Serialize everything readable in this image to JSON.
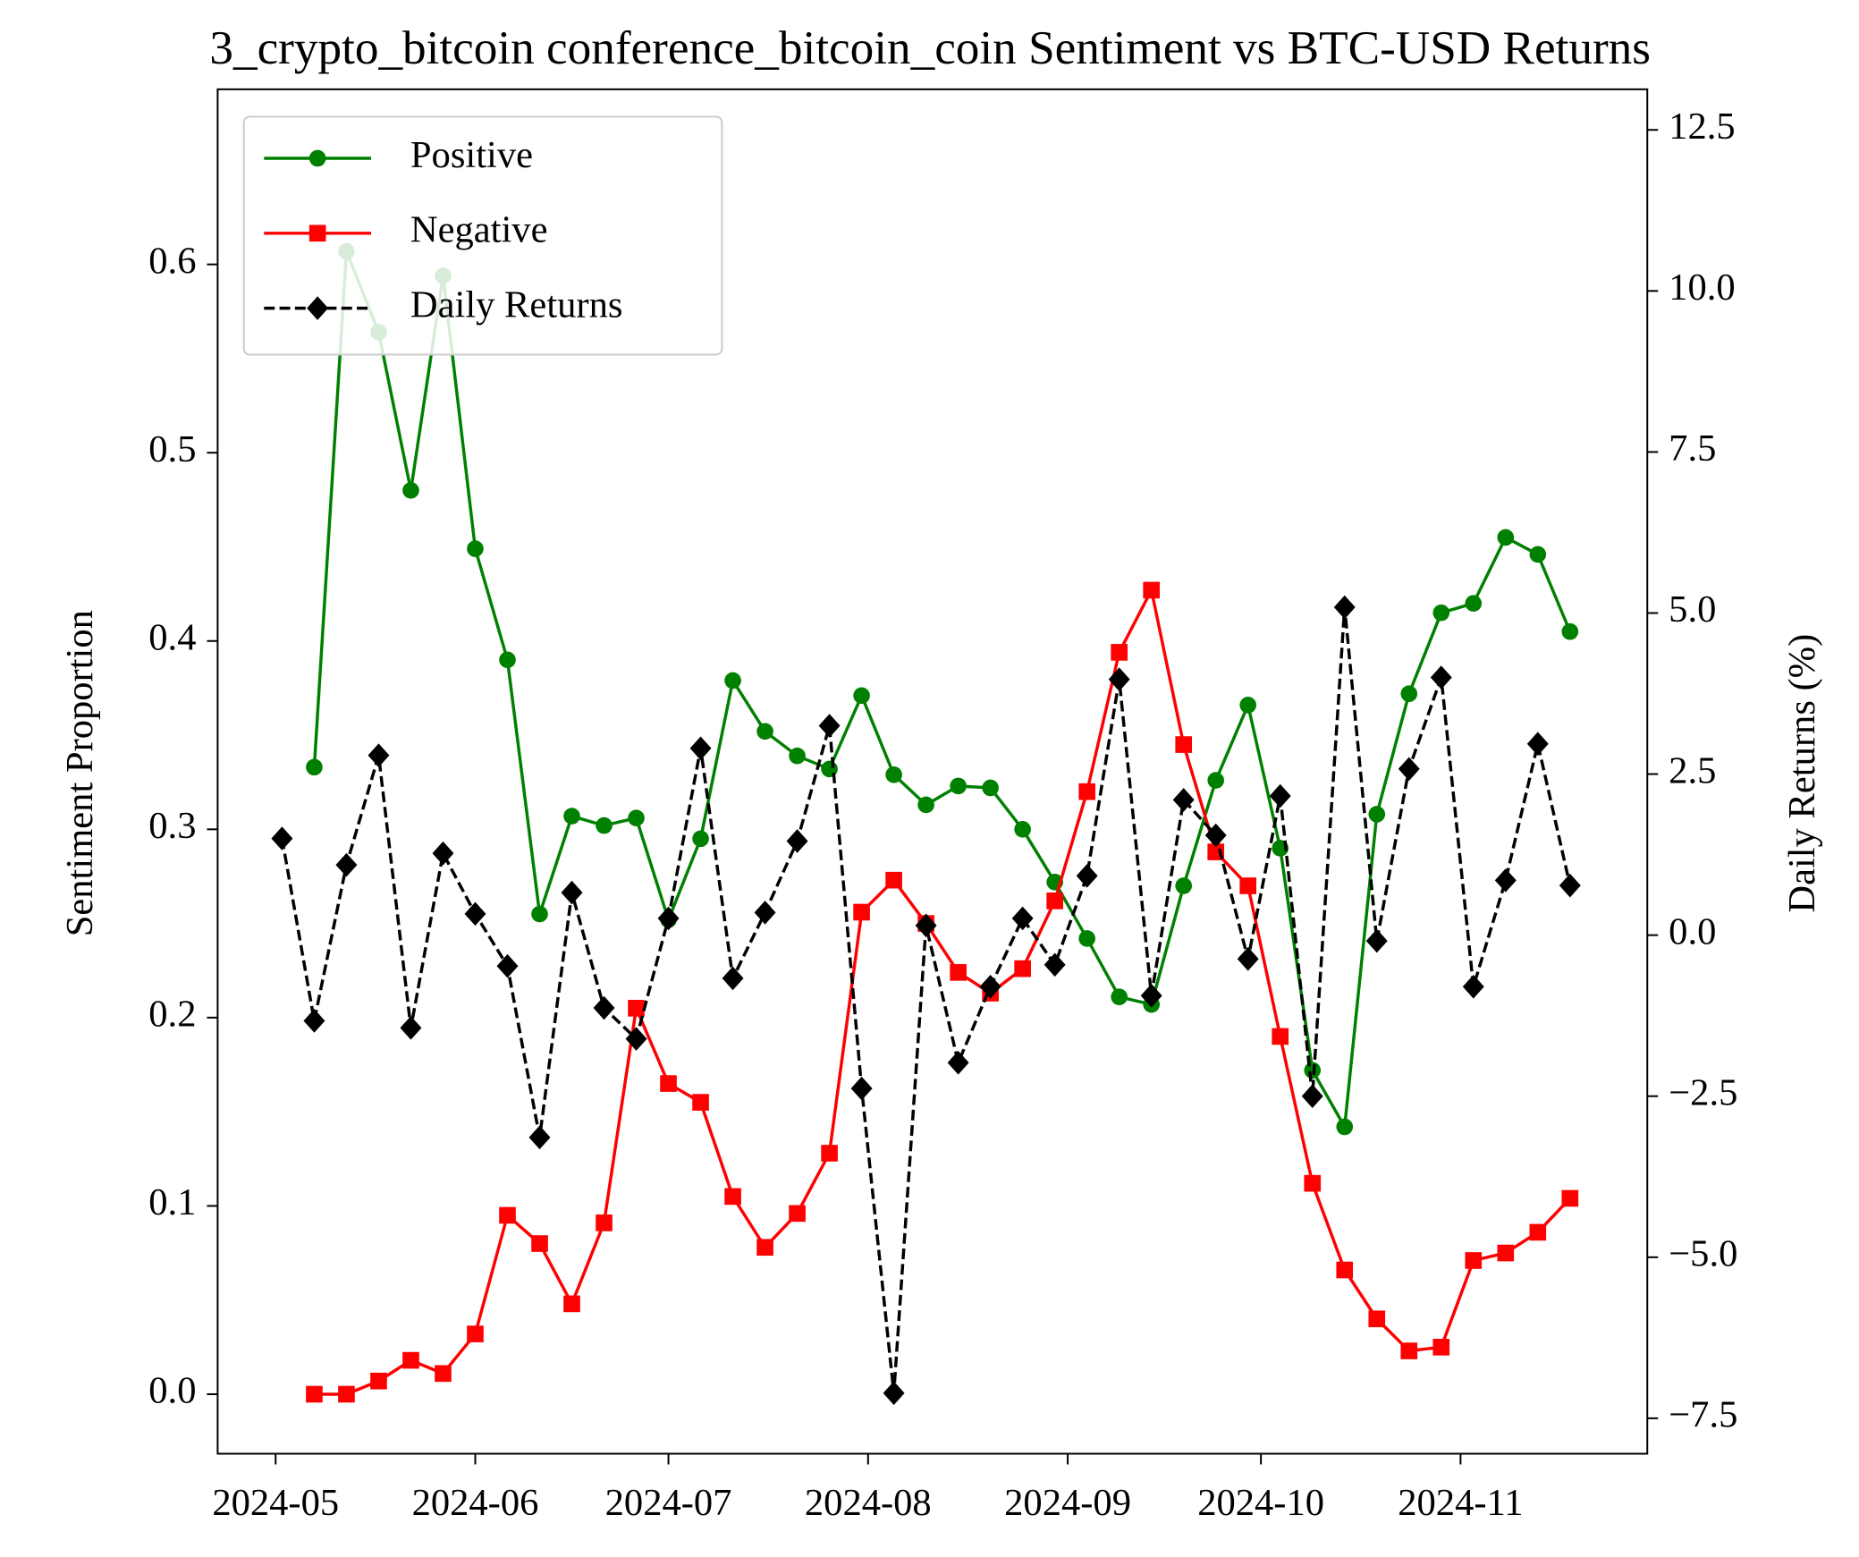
{
  "chart_data": {
    "type": "line",
    "title": "3_crypto_bitcoin conference_bitcoin_coin Sentiment vs BTC-USD Returns",
    "ylabel": "Sentiment Proportion",
    "y2label": "Daily Returns (%)",
    "legend": "upper left",
    "xlim": [
      "2024-04-22",
      "2024-11-30"
    ],
    "xticks": [
      {
        "value": "2024-05-01",
        "label": "2024-05"
      },
      {
        "value": "2024-06-01",
        "label": "2024-06"
      },
      {
        "value": "2024-07-01",
        "label": "2024-07"
      },
      {
        "value": "2024-08-01",
        "label": "2024-08"
      },
      {
        "value": "2024-09-01",
        "label": "2024-09"
      },
      {
        "value": "2024-10-01",
        "label": "2024-10"
      },
      {
        "value": "2024-11-01",
        "label": "2024-11"
      }
    ],
    "ylim": [
      -0.0316,
      0.693
    ],
    "yticks": [
      {
        "value": 0,
        "label": "0.0"
      },
      0.1,
      0.2,
      0.3,
      0.4,
      0.5,
      0.6
    ],
    "y2lim": [
      -8.05,
      13.13
    ],
    "y2ticks": [
      {
        "value": -7.5,
        "label": "−7.5"
      },
      {
        "value": -5,
        "label": "−5.0"
      },
      {
        "value": -2.5,
        "label": "−2.5"
      },
      {
        "value": 0,
        "label": "0.0"
      },
      2.5,
      {
        "value": 5,
        "label": "5.0"
      },
      7.5,
      {
        "value": 10,
        "label": "10.0"
      },
      12.5
    ],
    "x": [
      "2024-05-07",
      "2024-05-12",
      "2024-05-17",
      "2024-05-22",
      "2024-05-27",
      "2024-06-01",
      "2024-06-06",
      "2024-06-11",
      "2024-06-16",
      "2024-06-21",
      "2024-06-26",
      "2024-07-01",
      "2024-07-06",
      "2024-07-11",
      "2024-07-16",
      "2024-07-21",
      "2024-07-26",
      "2024-07-31",
      "2024-08-05",
      "2024-08-10",
      "2024-08-15",
      "2024-08-20",
      "2024-08-25",
      "2024-08-30",
      "2024-09-04",
      "2024-09-09",
      "2024-09-14",
      "2024-09-19",
      "2024-09-24",
      "2024-09-29",
      "2024-10-04",
      "2024-10-09",
      "2024-10-14",
      "2024-10-19",
      "2024-10-24",
      "2024-10-29",
      "2024-11-03",
      "2024-11-08",
      "2024-11-13",
      "2024-11-18"
    ],
    "series": [
      {
        "name": "Positive",
        "color": "#008000",
        "marker": "circle",
        "values": [
          0.333,
          0.607,
          0.564,
          0.48,
          0.594,
          0.449,
          0.39,
          0.255,
          0.307,
          0.302,
          0.306,
          0.252,
          0.295,
          0.379,
          0.352,
          0.339,
          0.332,
          0.371,
          0.329,
          0.313,
          0.323,
          0.322,
          0.3,
          0.272,
          0.242,
          0.211,
          0.207,
          0.27,
          0.326,
          0.366,
          0.29,
          0.172,
          0.142,
          0.308,
          0.372,
          0.415,
          0.42,
          0.455,
          0.446,
          0.405
        ]
      },
      {
        "name": "Negative",
        "color": "#ff0000",
        "marker": "square",
        "values": [
          0.0,
          0.0,
          0.007,
          0.018,
          0.011,
          0.032,
          0.095,
          0.08,
          0.048,
          0.091,
          0.205,
          0.165,
          0.155,
          0.105,
          0.078,
          0.096,
          0.128,
          0.256,
          0.273,
          0.25,
          0.224,
          0.213,
          0.226,
          0.262,
          0.32,
          0.394,
          0.427,
          0.345,
          0.288,
          0.27,
          0.19,
          0.112,
          0.066,
          0.04,
          0.023,
          0.025,
          0.071,
          0.075,
          0.086,
          0.104
        ]
      },
      {
        "name": "Daily Returns",
        "color": "#000000",
        "marker": "diamond",
        "dashed": true,
        "axis": "y2",
        "x": [
          "2024-05-02",
          "2024-05-07",
          "2024-05-12",
          "2024-05-17",
          "2024-05-22",
          "2024-05-27",
          "2024-06-01",
          "2024-06-06",
          "2024-06-11",
          "2024-06-16",
          "2024-06-21",
          "2024-06-26",
          "2024-07-01",
          "2024-07-06",
          "2024-07-11",
          "2024-07-16",
          "2024-07-21",
          "2024-07-26",
          "2024-07-31",
          "2024-08-05",
          "2024-08-10",
          "2024-08-15",
          "2024-08-20",
          "2024-08-25",
          "2024-08-30",
          "2024-09-04",
          "2024-09-09",
          "2024-09-14",
          "2024-09-19",
          "2024-09-24",
          "2024-09-29",
          "2024-10-04",
          "2024-10-09",
          "2024-10-14",
          "2024-10-19",
          "2024-10-24",
          "2024-10-29",
          "2024-11-03",
          "2024-11-08",
          "2024-11-13",
          "2024-11-18"
        ],
        "values": [
          1.5,
          -1.33,
          1.09,
          2.79,
          -1.44,
          1.27,
          0.33,
          -0.48,
          -3.14,
          0.66,
          -1.13,
          -1.61,
          0.26,
          2.9,
          -0.67,
          0.35,
          1.46,
          3.25,
          -2.38,
          -7.11,
          0.15,
          -1.98,
          -0.8,
          0.26,
          -0.46,
          0.92,
          3.97,
          -0.94,
          2.1,
          1.55,
          -0.37,
          2.16,
          -2.5,
          5.09,
          -0.09,
          2.58,
          4.0,
          -0.8,
          0.85,
          2.97,
          0.77
        ]
      }
    ]
  }
}
